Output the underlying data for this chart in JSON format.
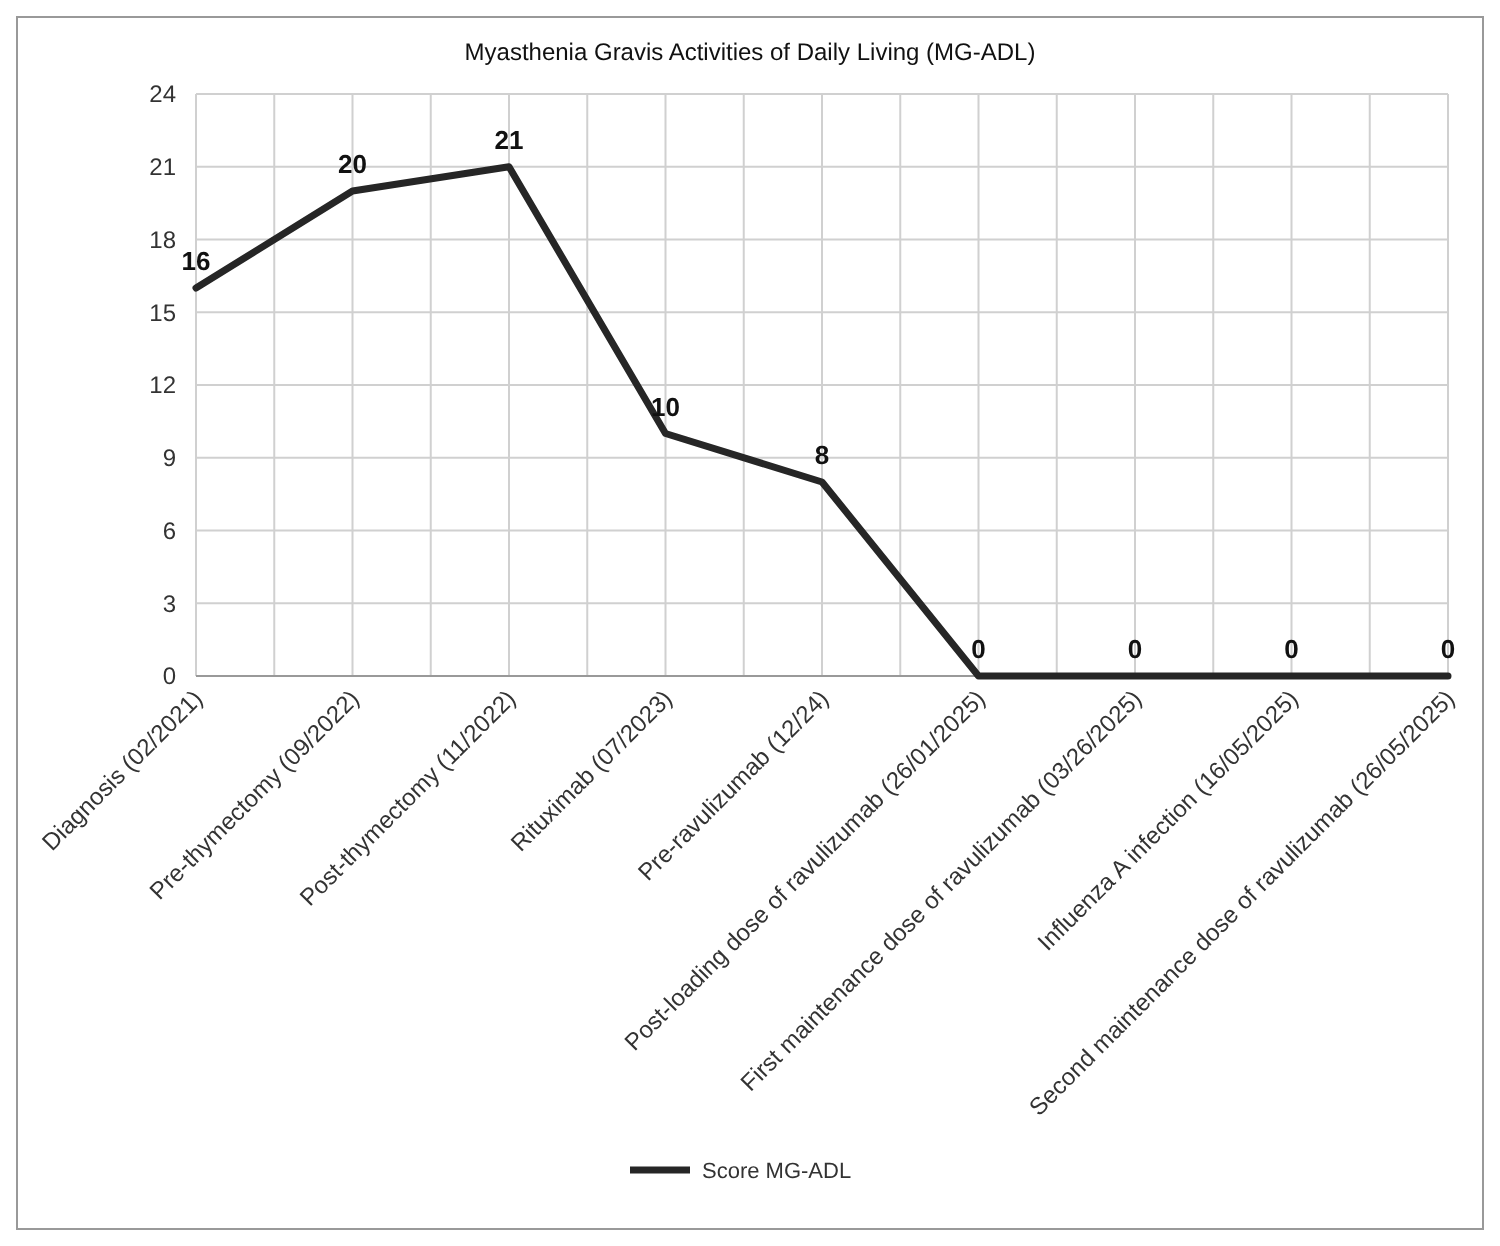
{
  "chart_data": {
    "type": "line",
    "title": "Myasthenia Gravis Activities of Daily Living (MG-ADL)",
    "categories": [
      "Diagnosis (02/2021)",
      "Pre-thymectomy (09/2022)",
      "Post-thymectomy (11/2022)",
      "Rituximab  (07/2023)",
      "Pre-ravulizumab (12/24)",
      "Post-loading dose of ravulizumab  (26/01/2025)",
      "First maintenance dose of ravulizumab (03/26/2025)",
      "Influenza A infection (16/05/2025)",
      "Second maintenance dose of ravulizumab (26/05/2025)"
    ],
    "series": [
      {
        "name": "Score MG-ADL",
        "color": "#262626",
        "values": [
          16,
          20,
          21,
          10,
          8,
          0,
          0,
          0,
          0
        ]
      }
    ],
    "ylim": [
      0,
      24
    ],
    "yticks": [
      0,
      3,
      6,
      9,
      12,
      15,
      18,
      21,
      24
    ],
    "grid": true,
    "legend": "bottom",
    "data_labels": true,
    "marker": "none",
    "line_style": "solid"
  }
}
